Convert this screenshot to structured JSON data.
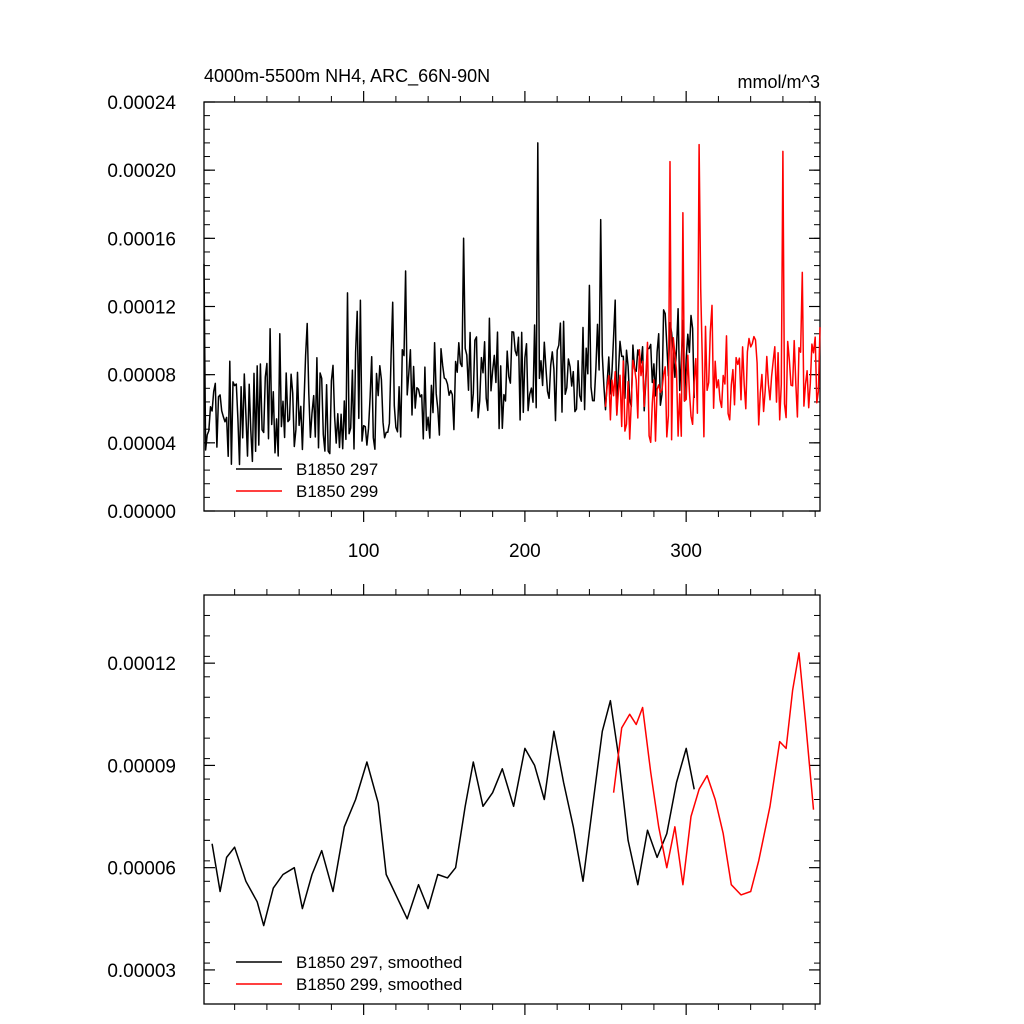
{
  "chart_data": [
    {
      "type": "line",
      "title": "4000m-5500m NH4, ARC_66N-90N",
      "units": "mmol/m^3",
      "xlim": [
        1,
        383
      ],
      "ylim": [
        0,
        0.00024
      ],
      "xticks": [
        100,
        200,
        300
      ],
      "xtick_labels": [
        "100",
        "200",
        "300"
      ],
      "yticks": [
        0,
        4e-05,
        8e-05,
        0.00012,
        0.00016,
        0.0002,
        0.00024
      ],
      "ytick_labels": [
        "0.00000",
        "0.00004",
        "0.00008",
        "0.00012",
        "0.00016",
        "0.00020",
        "0.00024"
      ],
      "legend": {
        "placement": "bottom-left",
        "entries": [
          "B1850 297",
          "B1850 299"
        ]
      },
      "series": [
        {
          "name": "B1850 297",
          "color": "#000000",
          "x_start": 1,
          "x_end": 305,
          "seed": 297,
          "base": [
            [
              1,
              5.5e-05
            ],
            [
              100,
              6.5e-05
            ],
            [
              200,
              8e-05
            ],
            [
              305,
              9e-05
            ]
          ],
          "amp": 3e-05,
          "spikes": [
            [
              1,
              0.000145
            ],
            [
              42,
              0.000107
            ],
            [
              48,
              0.000104
            ],
            [
              65,
              0.00011
            ],
            [
              90,
              0.000128
            ],
            [
              162,
              0.00016
            ],
            [
              208,
              0.000216
            ],
            [
              247,
              0.000171
            ]
          ]
        },
        {
          "name": "B1850 299",
          "color": "#ff0000",
          "x_start": 250,
          "x_end": 383,
          "seed": 299,
          "base": [
            [
              250,
              7e-05
            ],
            [
              300,
              7e-05
            ],
            [
              383,
              8e-05
            ]
          ],
          "amp": 3e-05,
          "spikes": [
            [
              290,
              0.000205
            ],
            [
              298,
              0.000175
            ],
            [
              308,
              0.000215
            ],
            [
              360,
              0.000211
            ],
            [
              372,
              0.00014
            ]
          ]
        }
      ]
    },
    {
      "type": "line",
      "title": "",
      "xlim": [
        1,
        383
      ],
      "ylim": [
        2e-05,
        0.00014
      ],
      "xticks": [
        100,
        200,
        300
      ],
      "xtick_labels": [
        "",
        "",
        ""
      ],
      "yticks": [
        3e-05,
        6e-05,
        9e-05,
        0.00012
      ],
      "ytick_labels": [
        "0.00003",
        "0.00006",
        "0.00009",
        "0.00012"
      ],
      "legend": {
        "placement": "bottom-left",
        "entries": [
          "B1850 297, smoothed",
          "B1850 299, smoothed"
        ]
      },
      "series": [
        {
          "name": "B1850 297, smoothed",
          "color": "#000000",
          "x": [
            6,
            11,
            15,
            20,
            27,
            34,
            38,
            44,
            50,
            57,
            62,
            68,
            74,
            81,
            88,
            95,
            102,
            109,
            114,
            120,
            127,
            134,
            140,
            146,
            152,
            157,
            163,
            168,
            174,
            180,
            186,
            193,
            200,
            206,
            212,
            218,
            224,
            230,
            236,
            242,
            248,
            253,
            258,
            264,
            270,
            276,
            282,
            288,
            294,
            300,
            305
          ],
          "y": [
            6.7e-05,
            5.3e-05,
            6.3e-05,
            6.6e-05,
            5.6e-05,
            5e-05,
            4.3e-05,
            5.4e-05,
            5.8e-05,
            6e-05,
            4.8e-05,
            5.8e-05,
            6.5e-05,
            5.3e-05,
            7.2e-05,
            8e-05,
            9.1e-05,
            7.9e-05,
            5.8e-05,
            5.2e-05,
            4.5e-05,
            5.5e-05,
            4.8e-05,
            5.8e-05,
            5.7e-05,
            6e-05,
            7.8e-05,
            9.1e-05,
            7.8e-05,
            8.2e-05,
            8.9e-05,
            7.8e-05,
            9.5e-05,
            9e-05,
            8e-05,
            0.0001,
            8.5e-05,
            7.2e-05,
            5.6e-05,
            7.8e-05,
            0.0001,
            0.000109,
            9.3e-05,
            6.8e-05,
            5.5e-05,
            7.1e-05,
            6.3e-05,
            7e-05,
            8.5e-05,
            9.5e-05,
            8.3e-05
          ]
        },
        {
          "name": "B1850 299, smoothed",
          "color": "#ff0000",
          "x": [
            255,
            260,
            265,
            269,
            273,
            278,
            283,
            288,
            293,
            298,
            303,
            308,
            313,
            318,
            323,
            328,
            334,
            340,
            345,
            352,
            358,
            362,
            366,
            370,
            374,
            379
          ],
          "y": [
            8.2e-05,
            0.000101,
            0.000105,
            0.000102,
            0.000107,
            8.8e-05,
            7.2e-05,
            6e-05,
            7.2e-05,
            5.5e-05,
            7.5e-05,
            8.3e-05,
            8.7e-05,
            8e-05,
            7e-05,
            5.5e-05,
            5.2e-05,
            5.3e-05,
            6.2e-05,
            7.8e-05,
            9.7e-05,
            9.5e-05,
            0.000112,
            0.000123,
            0.000103,
            7.7e-05
          ]
        }
      ]
    }
  ]
}
